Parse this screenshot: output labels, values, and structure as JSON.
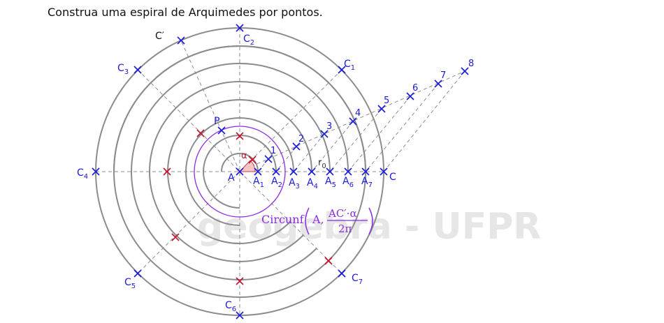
{
  "instruction": "Construa uma espiral de Arquimedes por pontos.",
  "watermark": "geogebra - UFPR",
  "formula": {
    "prefix": "Circunf",
    "arg": "A,",
    "numerator": "AC′·α",
    "denominator": "2π"
  },
  "labels": {
    "A": "A",
    "C": "C",
    "P": "P",
    "alpha": "α",
    "r0": "r",
    "r0_sub": "0",
    "c_prime": "C′",
    "C1": "C",
    "C1_sub": "1",
    "C2": "C",
    "C2_sub": "2",
    "C3": "C",
    "C3_sub": "3",
    "C4": "C",
    "C4_sub": "4",
    "C5": "C",
    "C5_sub": "5",
    "C6": "C",
    "C6_sub": "6",
    "C7": "C",
    "C7_sub": "7",
    "A1": "A",
    "A1_sub": "1",
    "A2": "A",
    "A2_sub": "2",
    "A3": "A",
    "A3_sub": "3",
    "A4": "A",
    "A4_sub": "4",
    "A5": "A",
    "A5_sub": "5",
    "A6": "A",
    "A6_sub": "6",
    "A7": "A",
    "A7_sub": "7",
    "n1": "1",
    "n2": "2",
    "n3": "3",
    "n4": "4",
    "n5": "5",
    "n6": "6",
    "n7": "7",
    "n8": "8"
  },
  "colors": {
    "circle": "#8c8c8c",
    "dashed": "#8c8c8c",
    "blue": "#1a1adb",
    "red": "#c4122f",
    "purple": "#8a2be2",
    "angle_fill": "#f5c6c6"
  }
}
